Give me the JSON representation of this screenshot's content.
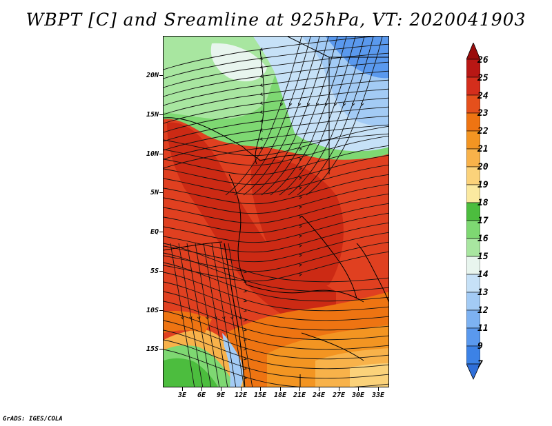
{
  "title": "WBPT [C] and Sreamline at 925hPa, VT: 2020041903",
  "credit": "GrADS: IGES/COLA",
  "axes": {
    "lat_labels": [
      "20N",
      "15N",
      "10N",
      "5N",
      "EQ",
      "5S",
      "10S",
      "15S"
    ],
    "lon_labels": [
      "3E",
      "6E",
      "9E",
      "12E",
      "15E",
      "18E",
      "21E",
      "24E",
      "27E",
      "30E",
      "33E"
    ]
  },
  "colorbar": {
    "levels": [
      "7",
      "9",
      "11",
      "12",
      "13",
      "14",
      "15",
      "16",
      "17",
      "18",
      "19",
      "20",
      "21",
      "22",
      "23",
      "24",
      "25",
      "26"
    ],
    "colors": [
      "#2f6fd9",
      "#3c82e6",
      "#5a99ee",
      "#7db2f2",
      "#a3cbf5",
      "#c6e1f7",
      "#e8f5ee",
      "#a8e6a0",
      "#7ed872",
      "#4cbd3e",
      "#fbe9a0",
      "#fbd27a",
      "#f8b24a",
      "#f39522",
      "#ee7412",
      "#e5501c",
      "#d42e1c",
      "#b81714",
      "#9a0c0c"
    ]
  },
  "map_colors": {
    "hot": "#e04020",
    "very_hot": "#cc2a14",
    "warm": "#ee7412",
    "orange": "#f39522",
    "light_orange": "#f8b24a",
    "yellow": "#fbd27a",
    "green": "#7ed872",
    "light_green": "#a8e6a0",
    "dark_green": "#4cbd3e",
    "cyan": "#c6e1f7",
    "light_blue": "#a3cbf5",
    "blue": "#5a99ee"
  }
}
